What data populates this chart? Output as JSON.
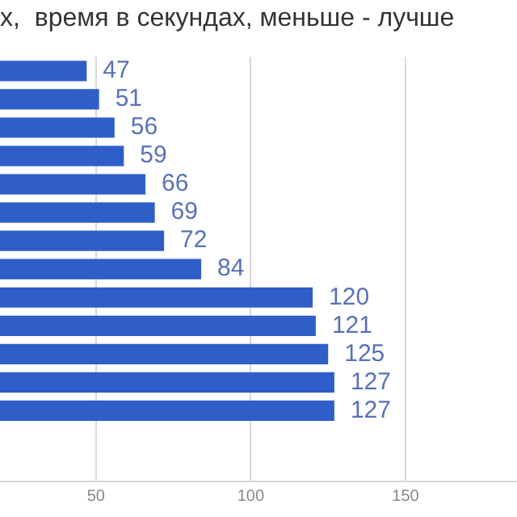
{
  "chart_data": {
    "type": "bar",
    "orientation": "horizontal",
    "title": "х,  время в секундах, меньше - лучше",
    "categories": [
      null,
      null,
      null,
      null,
      null,
      null,
      null,
      null,
      null,
      null,
      null,
      null,
      null,
      null,
      null
    ],
    "values": [
      47,
      51,
      56,
      59,
      66,
      69,
      72,
      84,
      120,
      121,
      125,
      127,
      127,
      null,
      null
    ],
    "color": "#2f5ec8",
    "xlim": [
      19,
      186
    ],
    "xticks": [
      50,
      100,
      150
    ],
    "grid": "x",
    "data_labels": true,
    "legend": false
  }
}
